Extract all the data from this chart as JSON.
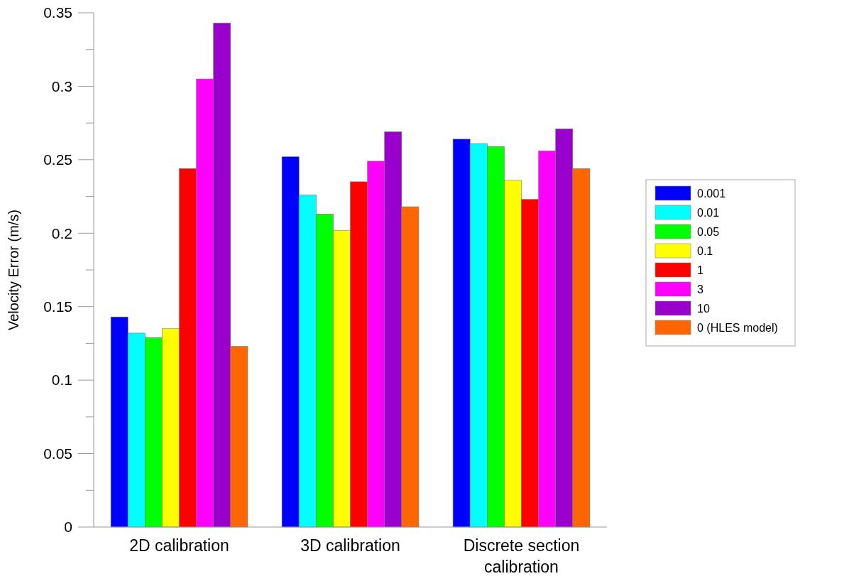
{
  "chart_data": {
    "type": "bar",
    "ylabel": "Velocity Error (m/s)",
    "categories": [
      "2D calibration",
      "3D calibration",
      "Discrete section calibration"
    ],
    "series": [
      {
        "name": "0.001",
        "color": "#0000ff",
        "values": [
          0.143,
          0.252,
          0.264
        ]
      },
      {
        "name": "0.01",
        "color": "#00ffff",
        "values": [
          0.132,
          0.226,
          0.261
        ]
      },
      {
        "name": "0.05",
        "color": "#00ff00",
        "values": [
          0.129,
          0.213,
          0.259
        ]
      },
      {
        "name": "0.1",
        "color": "#ffff00",
        "values": [
          0.135,
          0.202,
          0.236
        ]
      },
      {
        "name": "1",
        "color": "#ff0000",
        "values": [
          0.244,
          0.235,
          0.223
        ]
      },
      {
        "name": "3",
        "color": "#ff00ff",
        "values": [
          0.305,
          0.249,
          0.256
        ]
      },
      {
        "name": "10",
        "color": "#9900cc",
        "values": [
          0.343,
          0.269,
          0.271
        ]
      },
      {
        "name": "0 (HLES model)",
        "color": "#ff6600",
        "values": [
          0.123,
          0.218,
          0.244
        ]
      }
    ],
    "ylim": [
      0,
      0.35
    ],
    "yticks": [
      0,
      {
        "value": 0.025,
        "label": null
      },
      0.05,
      {
        "value": 0.075,
        "label": null
      },
      0.1,
      {
        "value": 0.125,
        "label": null
      },
      0.15,
      {
        "value": 0.175,
        "label": null
      },
      0.2,
      {
        "value": 0.225,
        "label": null
      },
      0.25,
      {
        "value": 0.275,
        "label": null
      },
      0.3,
      {
        "value": 0.325,
        "label": null
      },
      0.35
    ],
    "grid": false,
    "legend": "right"
  }
}
